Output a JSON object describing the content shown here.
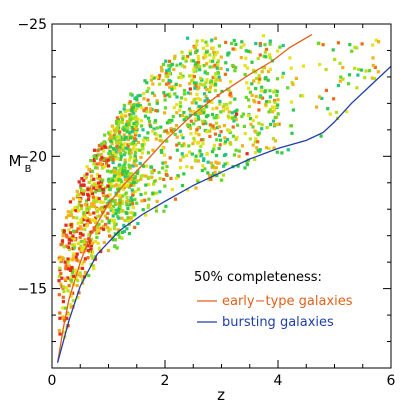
{
  "chart_data": {
    "type": "scatter",
    "title": "",
    "xlabel": "z",
    "ylabel_main": "M",
    "ylabel_sub": "B",
    "xlim": [
      0,
      6
    ],
    "ylim": [
      -12,
      -25
    ],
    "y_inverted": true,
    "x_ticks": [
      0,
      2,
      4,
      6
    ],
    "x_tick_labels": [
      "0",
      "2",
      "4",
      "6"
    ],
    "y_ticks": [
      -25,
      -20,
      -15
    ],
    "y_tick_labels": [
      "−25",
      "−20",
      "−15"
    ],
    "grid": false,
    "legend": {
      "placement": "lower-right",
      "title": "50% completeness:",
      "entries": [
        {
          "label": "early−type galaxies",
          "color": "#e0601a"
        },
        {
          "label": "bursting galaxies",
          "color": "#1f3fa8"
        }
      ]
    },
    "series": [
      {
        "name": "early−type galaxies",
        "kind": "line",
        "color": "#e0601a",
        "points": [
          [
            0.1,
            -12.2
          ],
          [
            0.2,
            -13.5
          ],
          [
            0.3,
            -14.6
          ],
          [
            0.5,
            -16.0
          ],
          [
            0.7,
            -17.1
          ],
          [
            1.0,
            -18.2
          ],
          [
            1.3,
            -19.0
          ],
          [
            1.7,
            -19.9
          ],
          [
            2.0,
            -20.6
          ],
          [
            2.5,
            -21.6
          ],
          [
            3.0,
            -22.4
          ],
          [
            3.5,
            -23.1
          ],
          [
            3.9,
            -23.6
          ],
          [
            4.2,
            -24.1
          ],
          [
            4.6,
            -24.6
          ],
          [
            5.0,
            -25.1
          ]
        ]
      },
      {
        "name": "bursting galaxies",
        "kind": "line",
        "color": "#1f3fa8",
        "points": [
          [
            0.1,
            -12.2
          ],
          [
            0.3,
            -13.8
          ],
          [
            0.5,
            -15.1
          ],
          [
            0.8,
            -16.3
          ],
          [
            1.2,
            -17.2
          ],
          [
            1.6,
            -17.8
          ],
          [
            2.0,
            -18.3
          ],
          [
            2.5,
            -18.9
          ],
          [
            3.0,
            -19.4
          ],
          [
            3.5,
            -19.9
          ],
          [
            4.0,
            -20.3
          ],
          [
            4.5,
            -20.6
          ],
          [
            4.8,
            -20.9
          ],
          [
            5.0,
            -21.3
          ],
          [
            5.3,
            -22.0
          ],
          [
            5.6,
            -22.6
          ],
          [
            5.8,
            -23.0
          ],
          [
            6.0,
            -23.4
          ]
        ]
      },
      {
        "name": "galaxies",
        "kind": "scatter",
        "note_colors": "points colored by galaxy type from red through yellow, green, cyan to blue and violet"
      }
    ]
  }
}
